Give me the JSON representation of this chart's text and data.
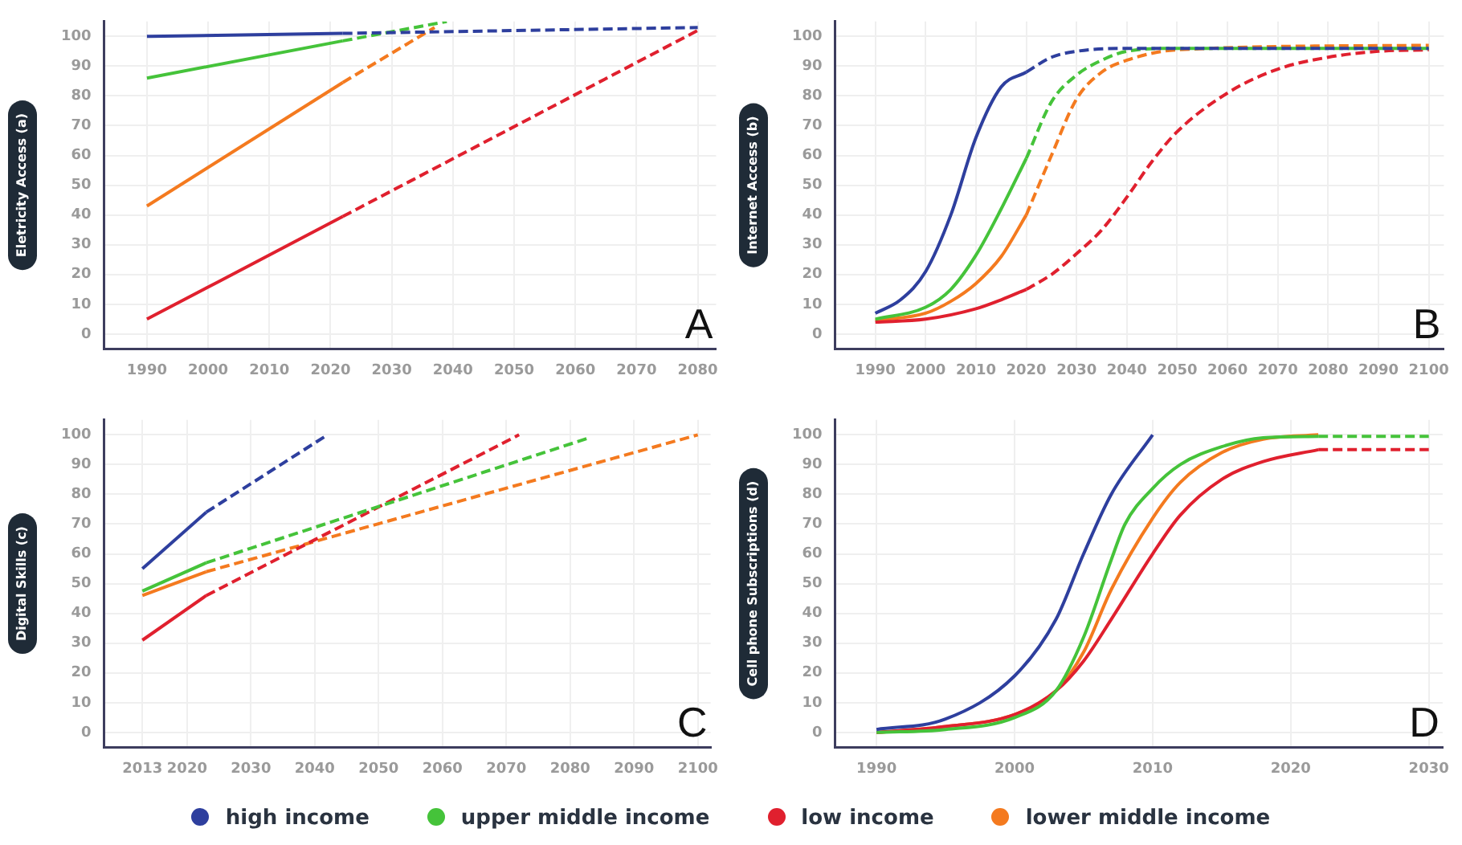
{
  "chart_data": [
    {
      "type": "line",
      "ylabel": "Eletricity Access (a)",
      "annotations": [
        "A"
      ],
      "xlim": [
        1983,
        2083
      ],
      "xticks": [
        1990,
        2000,
        2010,
        2020,
        2030,
        2040,
        2050,
        2060,
        2070,
        2080
      ],
      "ylim": [
        -5,
        105
      ],
      "yticks": [
        0,
        10,
        20,
        30,
        40,
        50,
        60,
        70,
        80,
        90,
        100
      ],
      "grid": true,
      "legend": "bottom",
      "marker": "none",
      "series": [
        {
          "name": "high income",
          "color": "#2e3f9e",
          "x": [
            1990,
            2022
          ],
          "values": [
            100,
            101
          ]
        },
        {
          "name": "upper middle income",
          "color": "#45c33a",
          "x": [
            1990,
            2022
          ],
          "values": [
            86,
            98.5
          ]
        },
        {
          "name": "low income",
          "color": "#e0202e",
          "x": [
            1990,
            2022
          ],
          "values": [
            5,
            39.5
          ]
        },
        {
          "name": "lower middle income",
          "color": "#f47a1f",
          "x": [
            1990,
            2022
          ],
          "values": [
            43,
            84.5
          ]
        },
        {
          "color": "#2e3f9e",
          "line_style": "dashed",
          "x": [
            2022,
            2080
          ],
          "values": [
            101,
            103
          ]
        },
        {
          "color": "#45c33a",
          "line_style": "dashed",
          "x": [
            2022,
            2039
          ],
          "values": [
            98.5,
            105
          ]
        },
        {
          "color": "#e0202e",
          "line_style": "dashed",
          "x": [
            2022,
            2080
          ],
          "values": [
            39.5,
            102
          ]
        },
        {
          "color": "#f47a1f",
          "line_style": "dashed",
          "x": [
            2022,
            2037
          ],
          "values": [
            84.5,
            103
          ]
        }
      ]
    },
    {
      "type": "line",
      "ylabel": "Internet Access (b)",
      "annotations": [
        "B"
      ],
      "xlim": [
        1982,
        2103
      ],
      "xticks": [
        1990,
        2000,
        2010,
        2020,
        2030,
        2040,
        2050,
        2060,
        2070,
        2080,
        2090,
        2100
      ],
      "ylim": [
        -5,
        105
      ],
      "yticks": [
        0,
        10,
        20,
        30,
        40,
        50,
        60,
        70,
        80,
        90,
        100
      ],
      "grid": true,
      "legend": "bottom",
      "marker": "none",
      "series": [
        {
          "name": "high income",
          "color": "#2e3f9e",
          "x": [
            1990,
            1995,
            2000,
            2005,
            2010,
            2015,
            2020
          ],
          "values": [
            7,
            11.5,
            21,
            40,
            66,
            83,
            88
          ]
        },
        {
          "name": "upper middle income",
          "color": "#45c33a",
          "x": [
            1990,
            2000,
            2005,
            2010,
            2015,
            2020
          ],
          "values": [
            5,
            9,
            15,
            26.5,
            42,
            59
          ]
        },
        {
          "name": "low income",
          "color": "#e0202e",
          "x": [
            1990,
            2000,
            2010,
            2015,
            2020
          ],
          "values": [
            4,
            5,
            8.5,
            11.5,
            15
          ]
        },
        {
          "name": "lower middle income",
          "color": "#f47a1f",
          "x": [
            1990,
            2000,
            2005,
            2010,
            2015,
            2020
          ],
          "values": [
            4.5,
            7,
            11,
            17,
            26,
            40
          ]
        },
        {
          "color": "#2e3f9e",
          "line_style": "dashed",
          "x": [
            2020,
            2025,
            2030,
            2040,
            2100
          ],
          "values": [
            88,
            93,
            95,
            96,
            96
          ]
        },
        {
          "color": "#45c33a",
          "line_style": "dashed",
          "x": [
            2020,
            2025,
            2030,
            2035,
            2040,
            2050,
            2100
          ],
          "values": [
            59,
            78,
            87,
            92,
            95,
            96,
            96
          ]
        },
        {
          "color": "#e0202e",
          "line_style": "dashed",
          "x": [
            2020,
            2025,
            2030,
            2035,
            2040,
            2045,
            2050,
            2060,
            2070,
            2080,
            2090,
            2100
          ],
          "values": [
            15,
            20,
            27,
            35,
            46,
            58,
            68,
            81,
            89,
            93,
            95,
            95.5
          ]
        },
        {
          "color": "#f47a1f",
          "line_style": "dashed",
          "x": [
            2020,
            2025,
            2030,
            2035,
            2040,
            2050,
            2100
          ],
          "values": [
            40,
            60,
            79,
            88,
            92,
            95.5,
            97
          ]
        }
      ]
    },
    {
      "type": "line",
      "ylabel": "Digital Skills (c)",
      "annotations": [
        "C"
      ],
      "xlim": [
        2007,
        2102
      ],
      "xticks": [
        2013,
        2020,
        2030,
        2040,
        2050,
        2060,
        2070,
        2080,
        2090,
        2100
      ],
      "ylim": [
        -5,
        105
      ],
      "yticks": [
        0,
        10,
        20,
        30,
        40,
        50,
        60,
        70,
        80,
        90,
        100
      ],
      "grid": true,
      "legend": "bottom",
      "marker": "none",
      "series": [
        {
          "name": "high income",
          "color": "#2e3f9e",
          "x": [
            2013,
            2023
          ],
          "values": [
            55,
            74
          ]
        },
        {
          "name": "upper middle income",
          "color": "#45c33a",
          "x": [
            2013,
            2023
          ],
          "values": [
            47.5,
            57
          ]
        },
        {
          "name": "low income",
          "color": "#e0202e",
          "x": [
            2013,
            2023
          ],
          "values": [
            31,
            46
          ]
        },
        {
          "name": "lower middle income",
          "color": "#f47a1f",
          "x": [
            2013,
            2023
          ],
          "values": [
            46,
            54
          ]
        },
        {
          "color": "#2e3f9e",
          "line_style": "dashed",
          "x": [
            2023,
            2042
          ],
          "values": [
            74,
            100
          ]
        },
        {
          "color": "#45c33a",
          "line_style": "dashed",
          "x": [
            2023,
            2083
          ],
          "values": [
            57,
            99
          ]
        },
        {
          "color": "#e0202e",
          "line_style": "dashed",
          "x": [
            2023,
            2072
          ],
          "values": [
            46,
            100
          ]
        },
        {
          "color": "#f47a1f",
          "line_style": "dashed",
          "x": [
            2023,
            2100
          ],
          "values": [
            54,
            100
          ]
        }
      ]
    },
    {
      "type": "line",
      "ylabel": "Cell phone Subscriptions (d)",
      "annotations": [
        "D"
      ],
      "xlim": [
        1987,
        2031
      ],
      "xticks": [
        1990,
        2000,
        2010,
        2020,
        2030
      ],
      "ylim": [
        -5,
        105
      ],
      "yticks": [
        0,
        10,
        20,
        30,
        40,
        50,
        60,
        70,
        80,
        90,
        100
      ],
      "grid": true,
      "legend": "bottom",
      "marker": "none",
      "series": [
        {
          "name": "high income",
          "color": "#2e3f9e",
          "x": [
            1990,
            1995,
            2000,
            2003,
            2005,
            2007,
            2010
          ],
          "values": [
            1,
            4.5,
            19,
            38,
            60,
            80,
            100
          ]
        },
        {
          "name": "upper middle income",
          "color": "#45c33a",
          "x": [
            1990,
            1995,
            2000,
            2003,
            2005,
            2007,
            2008,
            2010,
            2012,
            2015,
            2018,
            2022
          ],
          "values": [
            0,
            1,
            5,
            14,
            32,
            58,
            70,
            82,
            90,
            96,
            99,
            99.5
          ]
        },
        {
          "name": "low income",
          "color": "#e0202e",
          "x": [
            1990,
            1995,
            2000,
            2003,
            2005,
            2007,
            2010,
            2012,
            2015,
            2018,
            2022
          ],
          "values": [
            0,
            2,
            6,
            14,
            24,
            38,
            60,
            73,
            85,
            91,
            95
          ]
        },
        {
          "name": "lower middle income",
          "color": "#f47a1f",
          "x": [
            1990,
            1995,
            2000,
            2003,
            2005,
            2007,
            2010,
            2012,
            2015,
            2018,
            2022
          ],
          "values": [
            0,
            2,
            6,
            14,
            27,
            48,
            72,
            84,
            94,
            98.5,
            100
          ]
        },
        {
          "color": "#45c33a",
          "line_style": "dashed",
          "x": [
            2022,
            2030
          ],
          "values": [
            99.5,
            99.5
          ]
        },
        {
          "color": "#e0202e",
          "line_style": "dashed",
          "x": [
            2022,
            2030
          ],
          "values": [
            95,
            95
          ]
        }
      ]
    }
  ]
}
